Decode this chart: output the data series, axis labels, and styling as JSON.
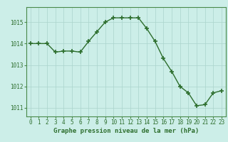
{
  "x": [
    0,
    1,
    2,
    3,
    4,
    5,
    6,
    7,
    8,
    9,
    10,
    11,
    12,
    13,
    14,
    15,
    16,
    17,
    18,
    19,
    20,
    21,
    22,
    23
  ],
  "y": [
    1014.0,
    1014.0,
    1014.0,
    1013.6,
    1013.65,
    1013.65,
    1013.6,
    1014.1,
    1014.55,
    1015.0,
    1015.2,
    1015.2,
    1015.2,
    1015.2,
    1014.7,
    1014.1,
    1013.3,
    1012.7,
    1012.0,
    1011.7,
    1011.1,
    1011.15,
    1011.7,
    1011.8
  ],
  "line_color": "#2d6e2d",
  "marker": "+",
  "marker_size": 4,
  "marker_linewidth": 1.2,
  "bg_color": "#cceee8",
  "grid_color": "#aad4cc",
  "ylim": [
    1010.6,
    1015.7
  ],
  "yticks": [
    1011,
    1012,
    1013,
    1014,
    1015
  ],
  "xticks": [
    0,
    1,
    2,
    3,
    4,
    5,
    6,
    7,
    8,
    9,
    10,
    11,
    12,
    13,
    14,
    15,
    16,
    17,
    18,
    19,
    20,
    21,
    22,
    23
  ],
  "xlabel": "Graphe pression niveau de la mer (hPa)",
  "xlabel_fontsize": 6.5,
  "tick_fontsize": 5.5,
  "line_width": 1.0,
  "axis_color": "#2d6e2d",
  "spine_color": "#4a8a4a"
}
